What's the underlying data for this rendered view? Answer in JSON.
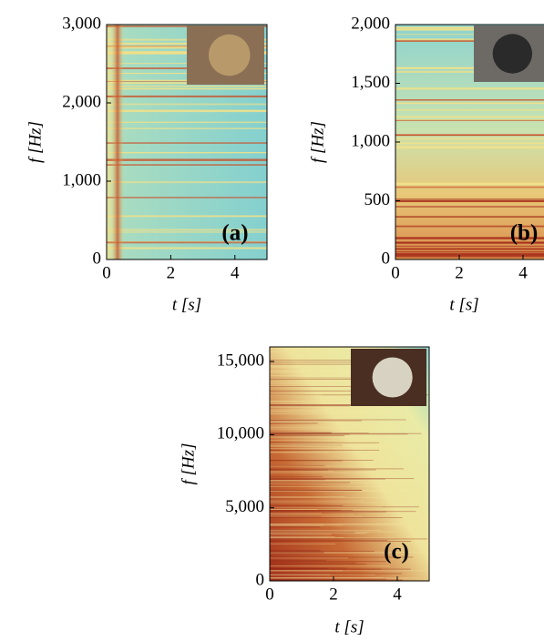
{
  "chart_data": [
    {
      "type": "spectrogram",
      "annotation": "(a)",
      "xlabel": "t [s]",
      "ylabel": "f [Hz]",
      "xlim": [
        0,
        5
      ],
      "xticks": [
        0,
        2,
        4
      ],
      "ylim": [
        0,
        3000
      ],
      "yticks": [
        0,
        {
          "value": 1000,
          "label": "1,000"
        },
        {
          "value": 2000,
          "label": "2,000"
        },
        {
          "value": 3000,
          "label": "3,000"
        }
      ]
    },
    {
      "type": "spectrogram",
      "annotation": "(b)",
      "xlabel": "t [s]",
      "ylabel": "f [Hz]",
      "xlim": [
        0,
        5
      ],
      "xticks": [
        0,
        2,
        4
      ],
      "ylim": [
        0,
        2000
      ],
      "yticks": [
        0,
        500,
        {
          "value": 1000,
          "label": "1,000"
        },
        {
          "value": 1500,
          "label": "1,500"
        },
        {
          "value": 2000,
          "label": "2,000"
        }
      ]
    },
    {
      "type": "spectrogram",
      "annotation": "(c)",
      "xlabel": "t [s]",
      "ylabel": "f [Hz]",
      "xlim": [
        0,
        5
      ],
      "xticks": [
        0,
        2,
        4
      ],
      "ylim": [
        0,
        16000
      ],
      "yticks": [
        0,
        {
          "value": 5000,
          "label": "5,000"
        },
        {
          "value": 10000,
          "label": "10,000"
        },
        {
          "value": 15000,
          "label": "15,000"
        }
      ]
    }
  ]
}
